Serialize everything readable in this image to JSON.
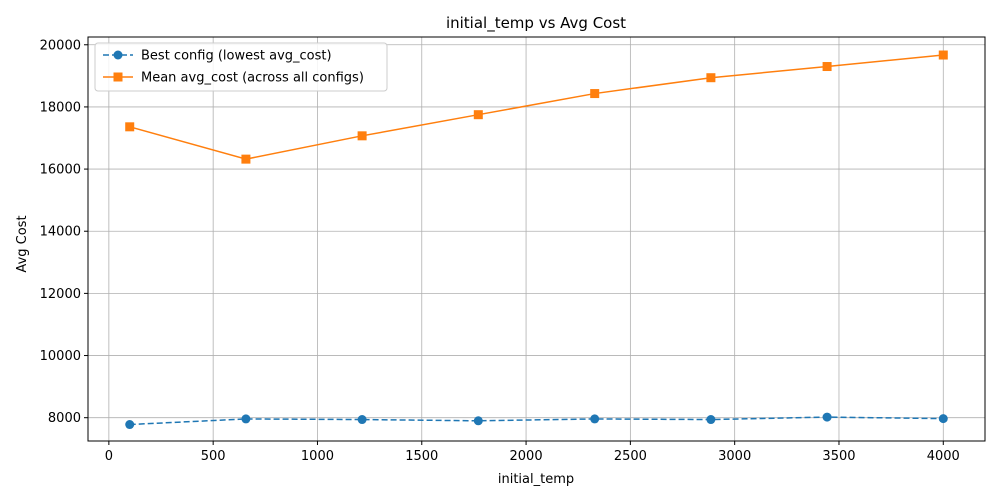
{
  "chart_data": {
    "type": "line",
    "title": "initial_temp vs Avg Cost",
    "xlabel": "initial_temp",
    "ylabel": "Avg Cost",
    "xlim": [
      -100,
      4200
    ],
    "ylim": [
      7250,
      20250
    ],
    "xticks": [
      0,
      500,
      1000,
      1500,
      2000,
      2500,
      3000,
      3500,
      4000
    ],
    "yticks": [
      8000,
      10000,
      12000,
      14000,
      16000,
      18000,
      20000
    ],
    "grid": true,
    "legend_position": "top-left",
    "series": [
      {
        "name": "Best config (lowest avg_cost)",
        "color": "#1f77b4",
        "marker": "circle",
        "linestyle": "dashed",
        "x": [
          100,
          657,
          1214,
          1771,
          2329,
          2886,
          3443,
          4000
        ],
        "y": [
          7780,
          7960,
          7940,
          7900,
          7960,
          7940,
          8020,
          7970
        ]
      },
      {
        "name": "Mean avg_cost (across all configs)",
        "color": "#ff7f0e",
        "marker": "square",
        "linestyle": "solid",
        "x": [
          100,
          657,
          1214,
          1771,
          2329,
          2886,
          3443,
          4000
        ],
        "y": [
          17360,
          16320,
          17070,
          17750,
          18430,
          18940,
          19300,
          19670
        ]
      }
    ]
  }
}
